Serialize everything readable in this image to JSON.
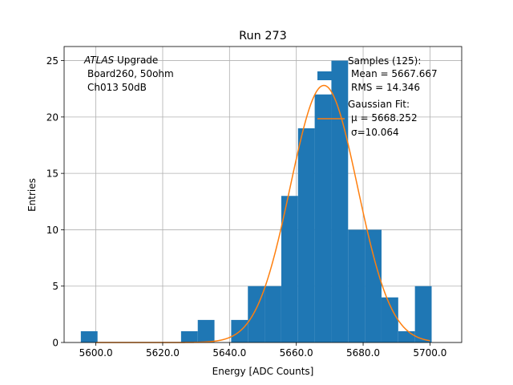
{
  "chart_data": {
    "type": "bar",
    "title": "Run 273",
    "xlabel": "Energy [ADC Counts]",
    "ylabel": "Entries",
    "xlim": [
      5590.5,
      5709.5
    ],
    "ylim": [
      0,
      26.25
    ],
    "xticks": [
      5600,
      5620,
      5640,
      5660,
      5680,
      5700
    ],
    "xtick_labels": [
      "5600.0",
      "5620.0",
      "5640.0",
      "5660.0",
      "5680.0",
      "5700.0"
    ],
    "yticks": [
      0,
      5,
      10,
      15,
      20,
      25
    ],
    "ytick_labels": [
      "0",
      "5",
      "10",
      "15",
      "20",
      "25"
    ],
    "grid": true,
    "bar_color": "#1f77b4",
    "fit_color": "#ff7f0e",
    "histogram": {
      "bin_edges": [
        5595.5,
        5600.5,
        5605.5,
        5610.5,
        5615.5,
        5620.5,
        5625.5,
        5630.5,
        5635.5,
        5640.5,
        5645.5,
        5650.5,
        5655.5,
        5660.5,
        5665.5,
        5670.5,
        5675.5,
        5680.5,
        5685.5,
        5690.5,
        5695.5,
        5700.5
      ],
      "counts": [
        1,
        0,
        0,
        0,
        0,
        0,
        1,
        2,
        0,
        2,
        5,
        5,
        13,
        19,
        22,
        25,
        10,
        10,
        4,
        1,
        5
      ]
    },
    "fit": {
      "curve": "gaussian",
      "mu": 5668.252,
      "sigma": 10.064,
      "peak": 22.8,
      "x_range": [
        5600,
        5700
      ]
    },
    "annotation": {
      "line1_italic": "ATLAS",
      "line1_rest": " Upgrade",
      "line2": "Board260, 50ohm",
      "line3": "Ch013 50dB"
    },
    "legend": {
      "placement": "top-right",
      "samples_title": "Samples (125):",
      "samples_mean": "Mean = 5667.667",
      "samples_rms": "RMS = 14.346",
      "fit_title": "Gaussian Fit:",
      "fit_mu": "μ = 5668.252",
      "fit_sigma": "σ=10.064"
    }
  }
}
